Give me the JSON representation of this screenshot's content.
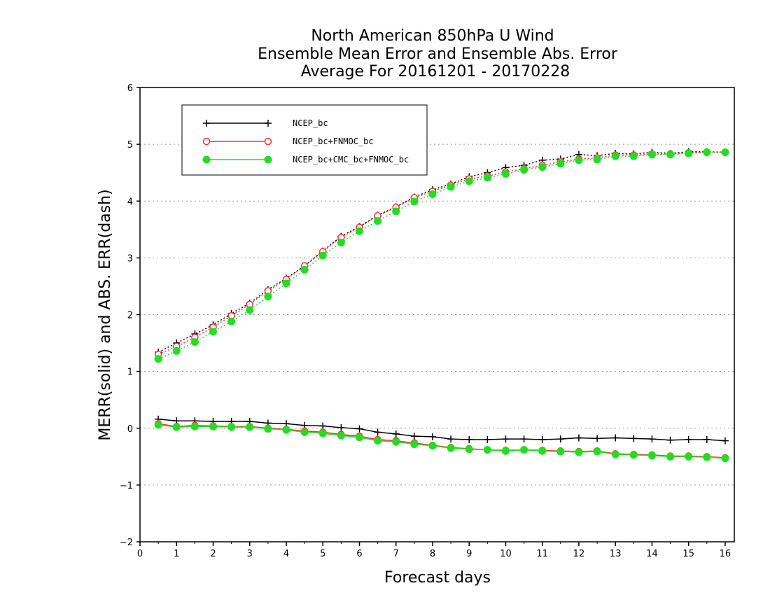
{
  "chart_data": {
    "type": "line",
    "title": [
      "North American 850hPa U Wind",
      "Ensemble Mean Error and Ensemble Abs. Error",
      "Average For 20161201 - 20170228"
    ],
    "xlabel": "Forecast days",
    "ylabel": "MERR(solid) and ABS. ERR(dash)",
    "xlim": [
      0,
      16.25
    ],
    "ylim": [
      -2,
      6
    ],
    "xticks": [
      0,
      1,
      2,
      3,
      4,
      5,
      6,
      7,
      8,
      9,
      10,
      11,
      12,
      13,
      14,
      15,
      16
    ],
    "yticks": [
      -2,
      -1,
      0,
      1,
      2,
      3,
      4,
      5,
      6
    ],
    "grid": "horizontal dotted",
    "legend_position": "top-left",
    "x": [
      0.5,
      1,
      1.5,
      2,
      2.5,
      3,
      3.5,
      4,
      4.5,
      5,
      5.5,
      6,
      6.5,
      7,
      7.5,
      8,
      8.5,
      9,
      9.5,
      10,
      10.5,
      11,
      11.5,
      12,
      12.5,
      13,
      13.5,
      14,
      14.5,
      15,
      15.5,
      16
    ],
    "series": [
      {
        "name": "NCEP_bc",
        "color": "#000000",
        "marker": "plus",
        "merr": [
          0.16,
          0.13,
          0.13,
          0.12,
          0.12,
          0.12,
          0.09,
          0.08,
          0.05,
          0.04,
          0.01,
          -0.01,
          -0.07,
          -0.1,
          -0.14,
          -0.15,
          -0.19,
          -0.2,
          -0.2,
          -0.19,
          -0.19,
          -0.2,
          -0.19,
          -0.17,
          -0.18,
          -0.17,
          -0.18,
          -0.19,
          -0.21,
          -0.2,
          -0.2,
          -0.22
        ],
        "abs_err": [
          1.34,
          1.5,
          1.66,
          1.82,
          2.02,
          2.2,
          2.44,
          2.64,
          2.86,
          3.12,
          3.38,
          3.55,
          3.75,
          3.9,
          4.07,
          4.2,
          4.3,
          4.43,
          4.5,
          4.59,
          4.63,
          4.72,
          4.74,
          4.82,
          4.8,
          4.84,
          4.83,
          4.86,
          4.84,
          4.87,
          4.87,
          4.86
        ]
      },
      {
        "name": "NCEP_bc+FNMOC_bc",
        "color": "#ff3030",
        "marker": "open-circle",
        "merr": [
          0.08,
          0.03,
          0.05,
          0.04,
          0.03,
          0.03,
          0.0,
          -0.02,
          -0.05,
          -0.07,
          -0.11,
          -0.14,
          -0.2,
          -0.22,
          -0.26,
          -0.3,
          -0.34,
          -0.36,
          -0.38,
          -0.39,
          -0.38,
          -0.39,
          -0.4,
          -0.41,
          -0.4,
          -0.45,
          -0.46,
          -0.47,
          -0.49,
          -0.49,
          -0.5,
          -0.52
        ],
        "abs_err": [
          1.3,
          1.44,
          1.6,
          1.78,
          1.98,
          2.18,
          2.42,
          2.62,
          2.86,
          3.11,
          3.36,
          3.54,
          3.74,
          3.89,
          4.06,
          4.17,
          4.28,
          4.39,
          4.44,
          4.51,
          4.57,
          4.63,
          4.69,
          4.74,
          4.76,
          4.81,
          4.81,
          4.83,
          4.83,
          4.85,
          4.86,
          4.86
        ]
      },
      {
        "name": "NCEP_bc+CMC_bc+FNMOC_bc",
        "color": "#22dd22",
        "marker": "filled-circle",
        "merr": [
          0.06,
          0.02,
          0.03,
          0.03,
          0.02,
          0.02,
          -0.01,
          -0.03,
          -0.07,
          -0.09,
          -0.13,
          -0.16,
          -0.22,
          -0.24,
          -0.28,
          -0.31,
          -0.35,
          -0.37,
          -0.38,
          -0.4,
          -0.38,
          -0.4,
          -0.41,
          -0.42,
          -0.41,
          -0.46,
          -0.47,
          -0.48,
          -0.5,
          -0.5,
          -0.51,
          -0.53
        ],
        "abs_err": [
          1.22,
          1.36,
          1.52,
          1.7,
          1.88,
          2.08,
          2.32,
          2.55,
          2.79,
          3.04,
          3.27,
          3.47,
          3.65,
          3.82,
          3.99,
          4.12,
          4.25,
          4.35,
          4.41,
          4.48,
          4.55,
          4.6,
          4.66,
          4.72,
          4.73,
          4.79,
          4.79,
          4.82,
          4.82,
          4.84,
          4.86,
          4.86
        ]
      }
    ]
  }
}
